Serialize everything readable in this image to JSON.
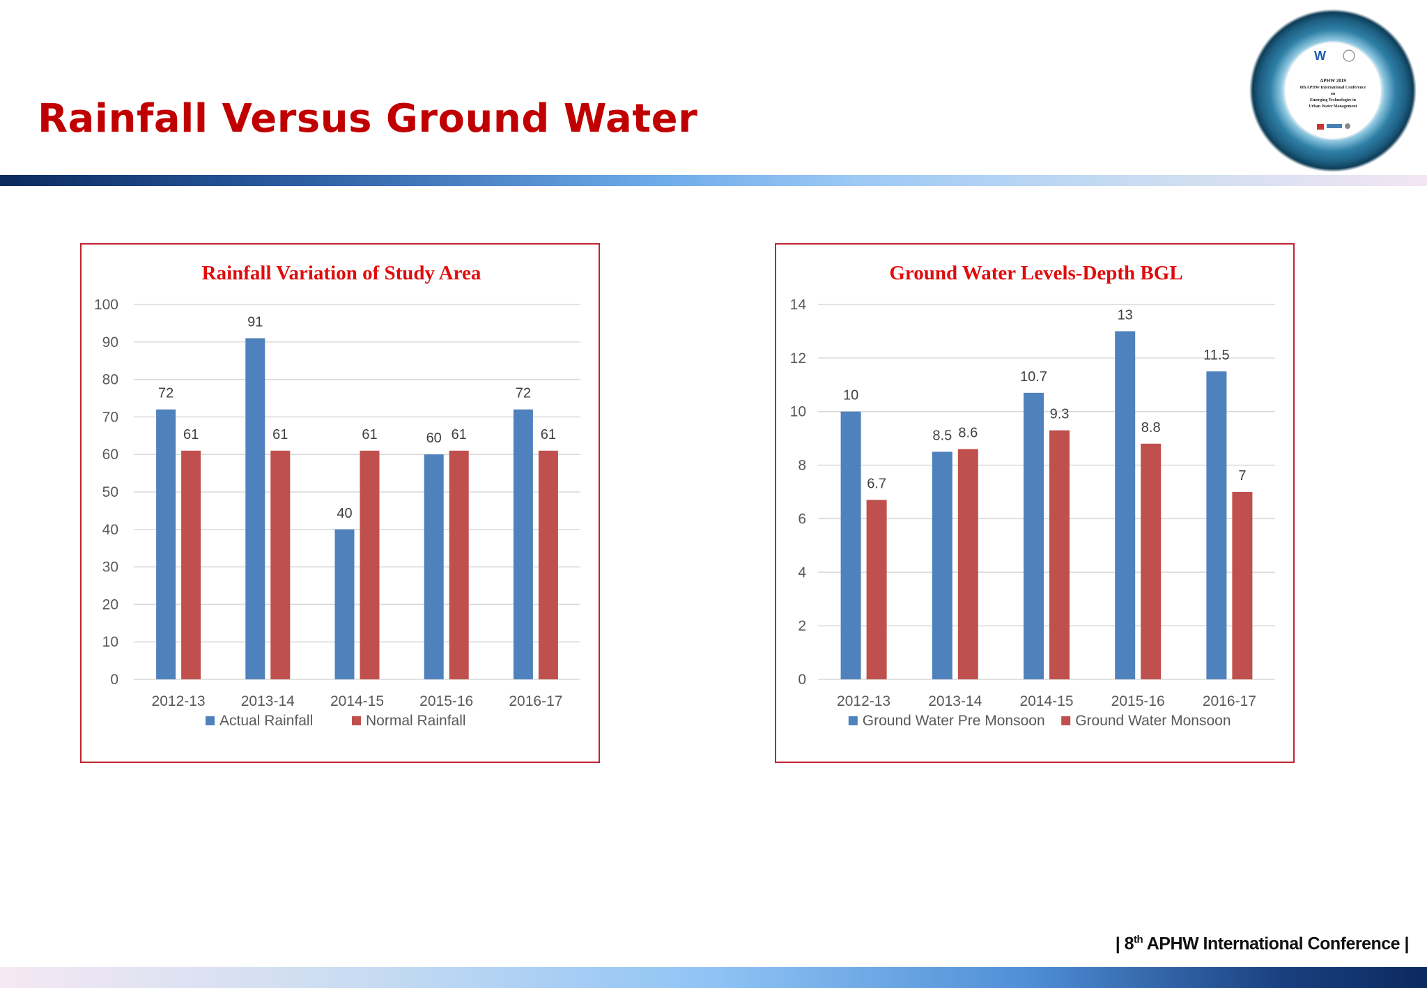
{
  "slide": {
    "title": "Rainfall Versus Ground Water",
    "footer_prefix": "| 8",
    "footer_sup": "th",
    "footer_suffix": " APHW International Conference |"
  },
  "logo": {
    "text_lines": [
      "APHW 2019",
      "8th APHW International Conference",
      "on",
      "Emerging Technologies in",
      "Urban Water Management"
    ]
  },
  "colors": {
    "blue_series": "#4f81bd",
    "red_series": "#c0504d",
    "title_red": "#c00000"
  },
  "chart_data": [
    {
      "type": "bar",
      "title": "Rainfall Variation of Study Area",
      "categories": [
        "2012-13",
        "2013-14",
        "2014-15",
        "2015-16",
        "2016-17"
      ],
      "series": [
        {
          "name": "Actual Rainfall",
          "values": [
            72,
            91,
            40,
            60,
            72
          ],
          "color": "#4f81bd"
        },
        {
          "name": "Normal Rainfall",
          "values": [
            61,
            61,
            61,
            61,
            61
          ],
          "color": "#c0504d"
        }
      ],
      "ylim": [
        0,
        100
      ],
      "yticks": [
        0,
        10,
        20,
        30,
        40,
        50,
        60,
        70,
        80,
        90,
        100
      ],
      "xlabel": "",
      "ylabel": "",
      "grid": true,
      "legend": "bottom"
    },
    {
      "type": "bar",
      "title": "Ground Water Levels-Depth BGL",
      "categories": [
        "2012-13",
        "2013-14",
        "2014-15",
        "2015-16",
        "2016-17"
      ],
      "series": [
        {
          "name": "Ground Water Pre Monsoon",
          "values": [
            10,
            8.5,
            10.7,
            13,
            11.5
          ],
          "color": "#4f81bd"
        },
        {
          "name": "Ground Water Monsoon",
          "values": [
            6.7,
            8.6,
            9.3,
            8.8,
            7
          ],
          "color": "#c0504d"
        }
      ],
      "ylim": [
        0,
        14
      ],
      "yticks": [
        0,
        2,
        4,
        6,
        8,
        10,
        12,
        14
      ],
      "xlabel": "",
      "ylabel": "",
      "grid": true,
      "legend": "bottom"
    }
  ]
}
